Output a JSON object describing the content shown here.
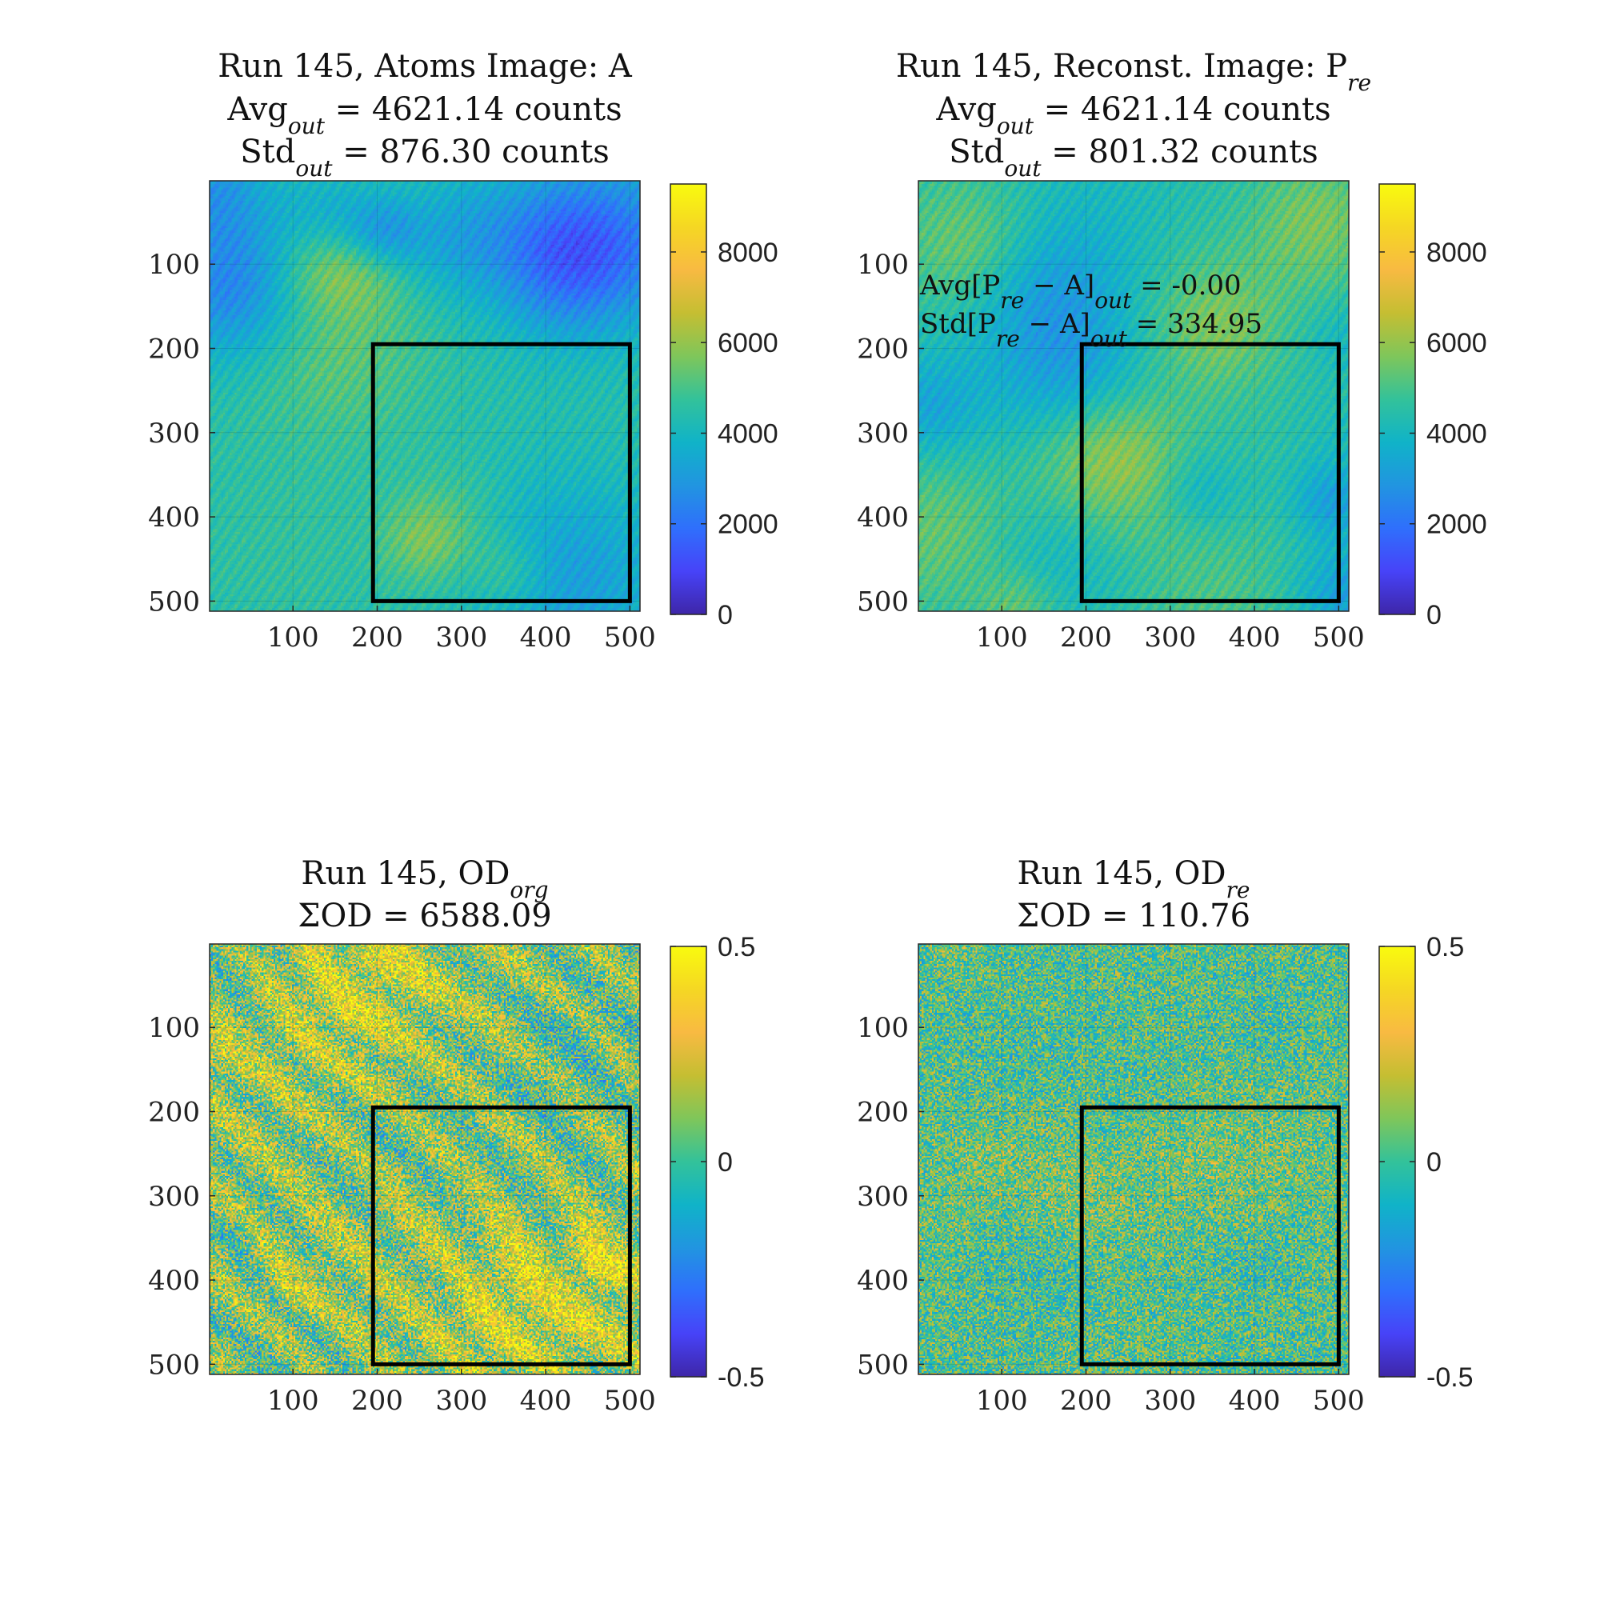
{
  "chart_data": [
    {
      "type": "heatmap",
      "title": [
        "Run 145, Atoms Image: A",
        "Avg_out = 4621.14 counts",
        "Std_out = 876.30 counts"
      ],
      "x_ticks": [
        "100",
        "200",
        "300",
        "400",
        "500"
      ],
      "y_ticks": [
        "100",
        "200",
        "300",
        "400",
        "500"
      ],
      "xlim": [
        1,
        512
      ],
      "ylim": [
        1,
        512
      ],
      "colorbar_ticks": [
        "0",
        "2000",
        "4000",
        "6000",
        "8000"
      ],
      "clim": [
        0,
        9500
      ],
      "roi_box": {
        "x": [
          195,
          500
        ],
        "y": [
          195,
          500
        ]
      },
      "annotations": []
    },
    {
      "type": "heatmap",
      "title": [
        "Run 145, Reconst. Image: P_re",
        "Avg_out = 4621.14 counts",
        "Std_out = 801.32 counts"
      ],
      "x_ticks": [
        "100",
        "200",
        "300",
        "400",
        "500"
      ],
      "y_ticks": [
        "100",
        "200",
        "300",
        "400",
        "500"
      ],
      "xlim": [
        1,
        512
      ],
      "ylim": [
        1,
        512
      ],
      "colorbar_ticks": [
        "0",
        "2000",
        "4000",
        "6000",
        "8000"
      ],
      "clim": [
        0,
        9500
      ],
      "roi_box": {
        "x": [
          195,
          500
        ],
        "y": [
          195,
          500
        ]
      },
      "annotations": [
        "Avg[P_re − A]_out = -0.00",
        "Std[P_re − A]_out = 334.95"
      ]
    },
    {
      "type": "heatmap",
      "title": [
        "Run 145, OD_org",
        "ΣOD = 6588.09"
      ],
      "x_ticks": [
        "100",
        "200",
        "300",
        "400",
        "500"
      ],
      "y_ticks": [
        "100",
        "200",
        "300",
        "400",
        "500"
      ],
      "xlim": [
        1,
        512
      ],
      "ylim": [
        1,
        512
      ],
      "colorbar_ticks": [
        "-0.5",
        "0",
        "0.5"
      ],
      "clim": [
        -0.5,
        0.5
      ],
      "roi_box": {
        "x": [
          195,
          500
        ],
        "y": [
          195,
          500
        ]
      },
      "annotations": []
    },
    {
      "type": "heatmap",
      "title": [
        "Run 145, OD_re",
        "ΣOD = 110.76"
      ],
      "x_ticks": [
        "100",
        "200",
        "300",
        "400",
        "500"
      ],
      "y_ticks": [
        "100",
        "200",
        "300",
        "400",
        "500"
      ],
      "xlim": [
        1,
        512
      ],
      "ylim": [
        1,
        512
      ],
      "colorbar_ticks": [
        "-0.5",
        "0",
        "0.5"
      ],
      "clim": [
        -0.5,
        0.5
      ],
      "roi_box": {
        "x": [
          195,
          500
        ],
        "y": [
          195,
          500
        ]
      },
      "annotations": []
    }
  ],
  "colors": {
    "parula": [
      "#3e26a8",
      "#4743f8",
      "#2f6ffc",
      "#2195e0",
      "#10b3c8",
      "#33c29a",
      "#7fc65a",
      "#c5be32",
      "#f8ba42",
      "#f5d723",
      "#f9fb0e"
    ],
    "roi": "#000000"
  }
}
